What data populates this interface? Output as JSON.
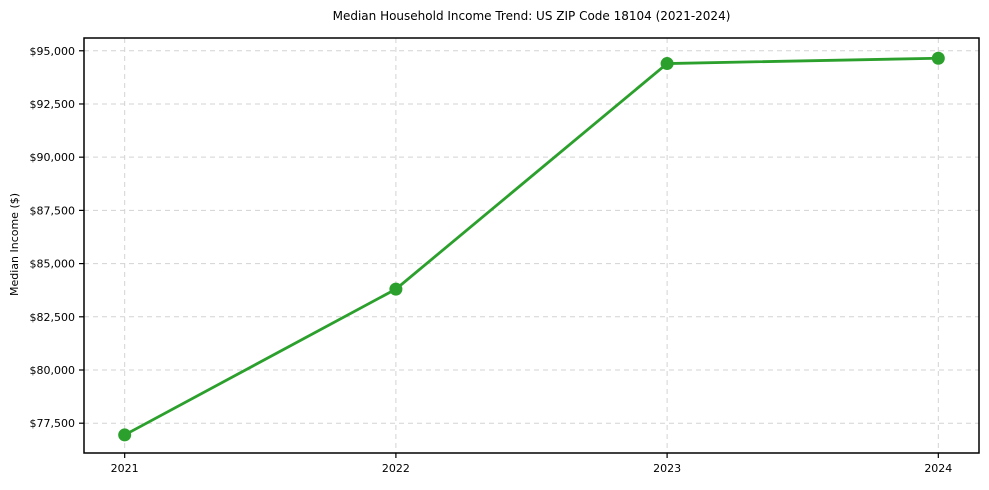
{
  "chart_data": {
    "type": "line",
    "title": "Median Household Income Trend: US ZIP Code 18104 (2021-2024)",
    "xlabel": "",
    "ylabel": "Median Income ($)",
    "x": [
      2021,
      2022,
      2023,
      2024
    ],
    "x_tick_labels": [
      "2021",
      "2022",
      "2023",
      "2024"
    ],
    "series": [
      {
        "name": "Median Household Income",
        "values": [
          76950,
          83800,
          94400,
          94650
        ]
      }
    ],
    "y_ticks": [
      77500,
      80000,
      82500,
      85000,
      87500,
      90000,
      92500,
      95000
    ],
    "y_tick_labels": [
      "$77,500",
      "$80,000",
      "$82,500",
      "$85,000",
      "$87,500",
      "$90,000",
      "$92,500",
      "$95,000"
    ],
    "xlim": [
      2020.85,
      2024.15
    ],
    "ylim": [
      76100,
      95600
    ],
    "grid": true,
    "grid_style": "dashed",
    "legend": "none",
    "marker": "circle",
    "colors": {
      "line": "#2ca02c",
      "marker": "#2ca02c",
      "grid": "#d3d3d3",
      "spine": "#000000",
      "background": "#ffffff",
      "text": "#000000"
    }
  }
}
